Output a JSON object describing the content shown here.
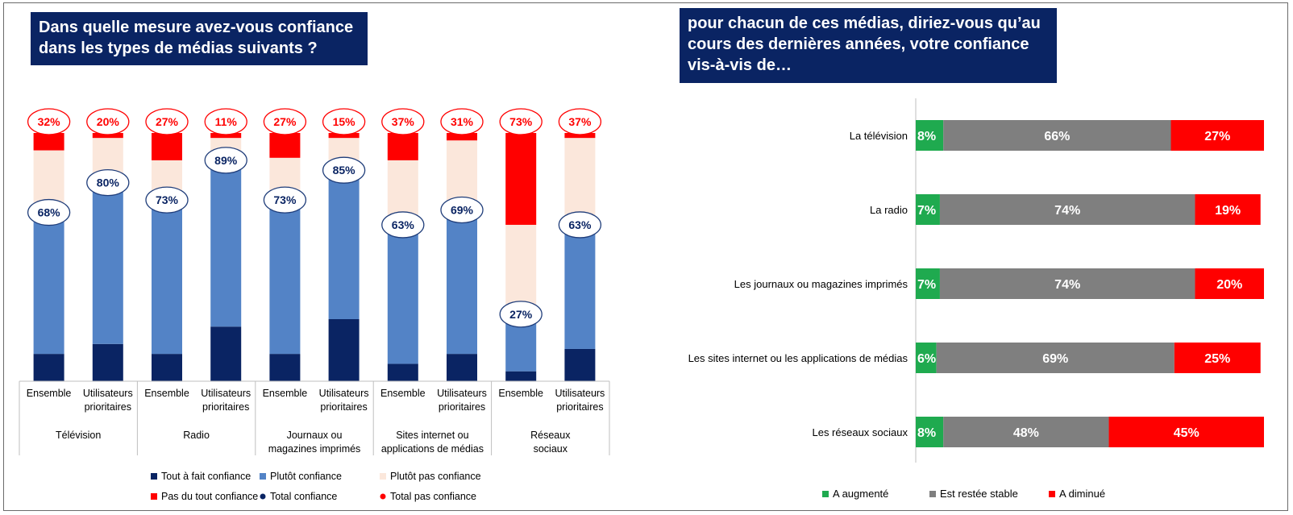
{
  "left_title": "Dans quelle mesure avez-vous confiance\ndans les types de médias suivants ?",
  "right_title": "pour chacun de ces médias, diriez-vous qu’au\ncours des dernières années, votre confiance\nvis-à-vis de…",
  "colors": {
    "title_bg": "#0a2463",
    "tout_a_fait": "#0a2463",
    "plutot": "#5383c6",
    "plutot_pas": "#fbe7db",
    "pas_du_tout": "#ff0000",
    "augmente": "#1faa4f",
    "stable": "#7f7f7f",
    "diminue": "#ff0000"
  },
  "chart_data": [
    {
      "type": "bar",
      "stacked": true,
      "groups": [
        "Télévision",
        "Radio",
        "Journaux ou magazines imprimés",
        "Sites internet ou applications de médias",
        "Réseaux sociaux"
      ],
      "categories": [
        "Ensemble",
        "Utilisateurs prioritaires",
        "Ensemble",
        "Utilisateurs prioritaires",
        "Ensemble",
        "Utilisateurs prioritaires",
        "Ensemble",
        "Utilisateurs prioritaires",
        "Ensemble",
        "Utilisateurs prioritaires"
      ],
      "series": [
        {
          "name": "Tout à fait confiance",
          "values": [
            11,
            15,
            11,
            22,
            11,
            25,
            7,
            11,
            4,
            13
          ]
        },
        {
          "name": "Plutôt confiance",
          "values": [
            57,
            65,
            62,
            67,
            62,
            60,
            56,
            58,
            23,
            50
          ]
        },
        {
          "name": "Plutôt pas confiance",
          "values": [
            25,
            18,
            16,
            9,
            17,
            13,
            26,
            28,
            36,
            35
          ]
        },
        {
          "name": "Pas du tout confiance",
          "values": [
            7,
            2,
            11,
            2,
            10,
            2,
            11,
            3,
            37,
            2
          ]
        }
      ],
      "totals": [
        {
          "name": "Total confiance",
          "labels": [
            "68%",
            "80%",
            "73%",
            "89%",
            "73%",
            "85%",
            "63%",
            "69%",
            "27%",
            "63%"
          ]
        },
        {
          "name": "Total pas confiance",
          "labels": [
            "32%",
            "20%",
            "27%",
            "11%",
            "27%",
            "15%",
            "37%",
            "31%",
            "73%",
            "37%"
          ]
        }
      ],
      "ylim": [
        0,
        100
      ]
    },
    {
      "type": "bar",
      "orientation": "horizontal",
      "stacked": true,
      "categories": [
        "La télévision",
        "La radio",
        "Les journaux ou magazines imprimés",
        "Les sites internet ou les applications de médias",
        "Les réseaux sociaux"
      ],
      "series": [
        {
          "name": "A augmenté",
          "values": [
            8,
            7,
            7,
            6,
            8
          ]
        },
        {
          "name": "Est restée stable",
          "values": [
            66,
            74,
            74,
            69,
            48
          ]
        },
        {
          "name": "A diminué",
          "values": [
            27,
            19,
            20,
            25,
            45
          ]
        }
      ],
      "xlim": [
        0,
        101
      ]
    }
  ]
}
